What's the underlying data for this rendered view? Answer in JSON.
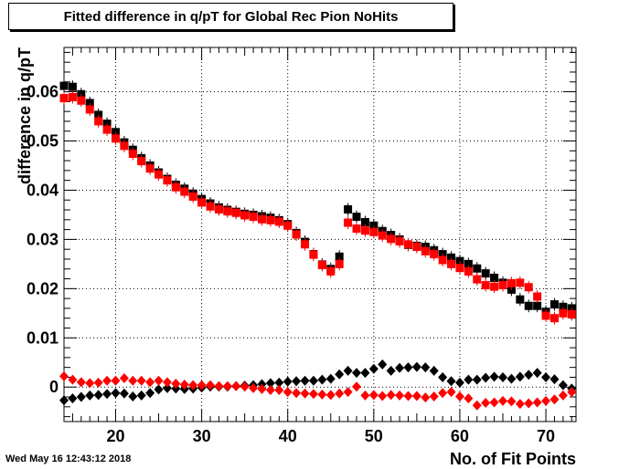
{
  "title": "Fitted difference in q/pT for Global Rec Pion NoHits",
  "timestamp": "Wed May 16 12:43:12 2018",
  "chart_data": {
    "type": "scatter",
    "xlabel": "No. of Fit Points",
    "ylabel": "difference in q/pT",
    "xlim": [
      14,
      73.5
    ],
    "ylim": [
      -0.007,
      0.069
    ],
    "x_ticks": [
      20,
      30,
      40,
      50,
      60,
      70
    ],
    "y_ticks": [
      0,
      0.01,
      0.02,
      0.03,
      0.04,
      0.05,
      0.06
    ],
    "y_tick_labels": [
      "0",
      "0.01",
      "0.02",
      "0.03",
      "0.04",
      "0.05",
      "0.06"
    ],
    "grid": true,
    "series": [
      {
        "marker": "square",
        "color": "#000000",
        "x": [
          14,
          15,
          16,
          17,
          18,
          19,
          20,
          21,
          22,
          23,
          24,
          25,
          26,
          27,
          28,
          29,
          30,
          31,
          32,
          33,
          34,
          35,
          36,
          37,
          38,
          39,
          40,
          41,
          42,
          43,
          44,
          45,
          46,
          47,
          48,
          49,
          50,
          51,
          52,
          53,
          54,
          55,
          56,
          57,
          58,
          59,
          60,
          61,
          62,
          63,
          64,
          65,
          66,
          67,
          68,
          69,
          70,
          71,
          72,
          73
        ],
        "y": [
          0.0612,
          0.061,
          0.0595,
          0.0577,
          0.0553,
          0.0535,
          0.0518,
          0.0497,
          0.0482,
          0.0465,
          0.045,
          0.0436,
          0.0423,
          0.0411,
          0.0403,
          0.0393,
          0.0382,
          0.0373,
          0.0365,
          0.036,
          0.0356,
          0.0352,
          0.035,
          0.0347,
          0.0344,
          0.0339,
          0.0331,
          0.0313,
          0.0295,
          0.027,
          0.0249,
          0.024,
          0.0265,
          0.0361,
          0.0346,
          0.0335,
          0.0328,
          0.0317,
          0.0309,
          0.03,
          0.0289,
          0.0287,
          0.0285,
          0.0278,
          0.027,
          0.0263,
          0.0256,
          0.025,
          0.0241,
          0.0231,
          0.0222,
          0.0212,
          0.0198,
          0.0178,
          0.0165,
          0.0165,
          0.0153,
          0.0168,
          0.0163,
          0.016
        ]
      },
      {
        "marker": "square",
        "color": "#ff0000",
        "x": [
          14,
          15,
          16,
          17,
          18,
          19,
          20,
          21,
          22,
          23,
          24,
          25,
          26,
          27,
          28,
          29,
          30,
          31,
          32,
          33,
          34,
          35,
          36,
          37,
          38,
          39,
          40,
          41,
          42,
          43,
          44,
          45,
          46,
          47,
          48,
          49,
          50,
          51,
          52,
          53,
          54,
          55,
          56,
          57,
          58,
          59,
          60,
          61,
          62,
          63,
          64,
          65,
          66,
          67,
          68,
          69,
          70,
          71,
          72,
          73
        ],
        "y": [
          0.0587,
          0.0589,
          0.0582,
          0.0564,
          0.054,
          0.0523,
          0.0505,
          0.049,
          0.0474,
          0.0459,
          0.0444,
          0.0432,
          0.042,
          0.0406,
          0.0397,
          0.0387,
          0.0375,
          0.0367,
          0.0361,
          0.0357,
          0.0354,
          0.0349,
          0.0346,
          0.0341,
          0.0339,
          0.0336,
          0.0328,
          0.031,
          0.029,
          0.0269,
          0.0248,
          0.0235,
          0.025,
          0.0334,
          0.0322,
          0.0318,
          0.0315,
          0.0308,
          0.0301,
          0.0296,
          0.029,
          0.0285,
          0.0276,
          0.027,
          0.0258,
          0.025,
          0.0242,
          0.0235,
          0.0219,
          0.0207,
          0.0204,
          0.0207,
          0.0211,
          0.0212,
          0.0203,
          0.0184,
          0.0145,
          0.014,
          0.015,
          0.0148
        ]
      },
      {
        "marker": "diamond",
        "color": "#000000",
        "x": [
          14,
          15,
          16,
          17,
          18,
          19,
          20,
          21,
          22,
          23,
          24,
          25,
          26,
          27,
          28,
          29,
          30,
          31,
          32,
          33,
          34,
          35,
          36,
          37,
          38,
          39,
          40,
          41,
          42,
          43,
          44,
          45,
          46,
          47,
          48,
          49,
          50,
          51,
          52,
          53,
          54,
          55,
          56,
          57,
          58,
          59,
          60,
          61,
          62,
          63,
          64,
          65,
          66,
          67,
          68,
          69,
          70,
          71,
          72,
          73
        ],
        "y": [
          -0.0027,
          -0.0023,
          -0.002,
          -0.0017,
          -0.0016,
          -0.0014,
          -0.0012,
          -0.0013,
          -0.0019,
          -0.0017,
          -0.0012,
          -0.0005,
          -0.0002,
          -0.0003,
          -0.0004,
          -0.0003,
          -0.0001,
          0.0001,
          0.0001,
          0.0001,
          0.0002,
          0.0003,
          0.0004,
          0.0006,
          0.0008,
          0.0009,
          0.0011,
          0.0012,
          0.0013,
          0.0013,
          0.0015,
          0.0017,
          0.0026,
          0.0033,
          0.0029,
          0.0029,
          0.0037,
          0.0046,
          0.0033,
          0.0039,
          0.004,
          0.0041,
          0.004,
          0.0033,
          0.002,
          0.0012,
          0.0009,
          0.0015,
          0.0015,
          0.0019,
          0.0021,
          0.002,
          0.0017,
          0.0021,
          0.0025,
          0.0029,
          0.002,
          0.0016,
          0.0004,
          -0.0003
        ]
      },
      {
        "marker": "diamond",
        "color": "#ff0000",
        "x": [
          14,
          15,
          16,
          17,
          18,
          19,
          20,
          21,
          22,
          23,
          24,
          25,
          26,
          27,
          28,
          29,
          30,
          31,
          32,
          33,
          34,
          35,
          36,
          37,
          38,
          39,
          40,
          41,
          42,
          43,
          44,
          45,
          46,
          47,
          48,
          49,
          50,
          51,
          52,
          53,
          54,
          55,
          56,
          57,
          58,
          59,
          60,
          61,
          62,
          63,
          64,
          65,
          66,
          67,
          68,
          69,
          70,
          71,
          72,
          73
        ],
        "y": [
          0.0022,
          0.0015,
          0.001,
          0.0008,
          0.0009,
          0.0013,
          0.0013,
          0.0018,
          0.0013,
          0.0013,
          0.001,
          0.0013,
          0.001,
          0.0007,
          0.0005,
          0.0004,
          0.0004,
          0.0004,
          0.0002,
          0.0002,
          0.0002,
          0.0001,
          -0.0002,
          -0.0004,
          -0.0006,
          -0.0006,
          -0.001,
          -0.0012,
          -0.0013,
          -0.0014,
          -0.0015,
          -0.0016,
          -0.0013,
          -0.001,
          0.0001,
          -0.0017,
          -0.0016,
          -0.0018,
          -0.0016,
          -0.0017,
          -0.0018,
          -0.0018,
          -0.0021,
          -0.0019,
          -0.0012,
          -0.001,
          -0.0019,
          -0.0023,
          -0.0037,
          -0.0032,
          -0.0031,
          -0.0028,
          -0.0029,
          -0.0034,
          -0.0033,
          -0.0031,
          -0.0028,
          -0.0025,
          -0.0017,
          -0.001
        ]
      }
    ]
  }
}
